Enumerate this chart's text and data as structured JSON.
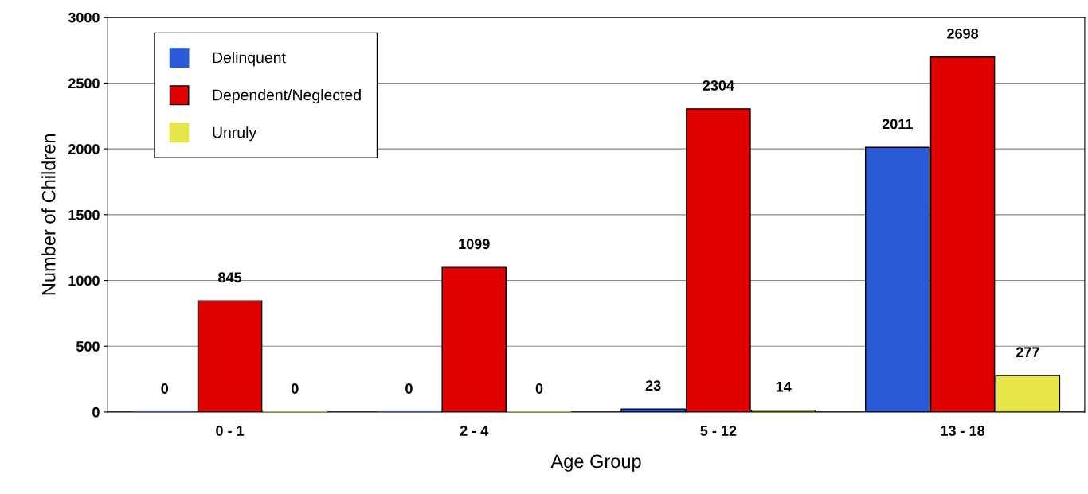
{
  "chart_data": {
    "type": "bar",
    "xlabel": "Age Group",
    "ylabel": "Number of Children",
    "categories": [
      "0 - 1",
      "2 - 4",
      "5 - 12",
      "13 - 18"
    ],
    "series": [
      {
        "name": "Delinquent",
        "color": "#2a5ad8",
        "values": [
          0,
          0,
          23,
          2011
        ]
      },
      {
        "name": "Dependent/Neglected",
        "color": "#e00000",
        "values": [
          845,
          1099,
          2304,
          2698
        ]
      },
      {
        "name": "Unruly",
        "color": "#e6e64a",
        "values": [
          0,
          0,
          14,
          277
        ]
      }
    ],
    "ylim": [
      0,
      3000
    ],
    "yticks": [
      0,
      500,
      1000,
      1500,
      2000,
      2500,
      3000
    ],
    "grid": "y",
    "legend": "top left",
    "data_labels": true
  }
}
